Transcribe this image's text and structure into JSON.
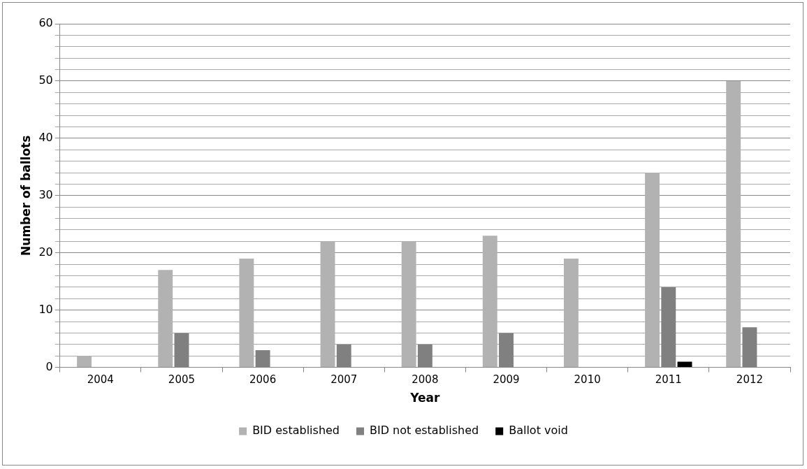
{
  "chart_data": {
    "type": "bar",
    "xlabel": "Year",
    "ylabel": "Number of ballots",
    "categories": [
      "2004",
      "2005",
      "2006",
      "2007",
      "2008",
      "2009",
      "2010",
      "2011",
      "2012"
    ],
    "series": [
      {
        "name": "BID established",
        "color": "#b2b2b2",
        "values": [
          2,
          17,
          19,
          22,
          22,
          23,
          19,
          34,
          50
        ]
      },
      {
        "name": "BID not established",
        "color": "#808080",
        "values": [
          0,
          6,
          3,
          4,
          4,
          6,
          0,
          14,
          7
        ]
      },
      {
        "name": "Ballot void",
        "color": "#000000",
        "values": [
          0,
          0,
          0,
          0,
          0,
          0,
          0,
          1,
          0
        ]
      }
    ],
    "ylim": [
      0,
      60
    ],
    "yticks": [
      0,
      {
        "value": 2,
        "label": null
      },
      {
        "value": 4,
        "label": null
      },
      {
        "value": 6,
        "label": null
      },
      {
        "value": 8,
        "label": null
      },
      10,
      {
        "value": 12,
        "label": null
      },
      {
        "value": 14,
        "label": null
      },
      {
        "value": 16,
        "label": null
      },
      {
        "value": 18,
        "label": null
      },
      20,
      {
        "value": 22,
        "label": null
      },
      {
        "value": 24,
        "label": null
      },
      {
        "value": 26,
        "label": null
      },
      {
        "value": 28,
        "label": null
      },
      30,
      {
        "value": 32,
        "label": null
      },
      {
        "value": 34,
        "label": null
      },
      {
        "value": 36,
        "label": null
      },
      {
        "value": 38,
        "label": null
      },
      40,
      {
        "value": 42,
        "label": null
      },
      {
        "value": 44,
        "label": null
      },
      {
        "value": 46,
        "label": null
      },
      {
        "value": 48,
        "label": null
      },
      50,
      {
        "value": 52,
        "label": null
      },
      {
        "value": 54,
        "label": null
      },
      {
        "value": 56,
        "label": null
      },
      {
        "value": 58,
        "label": null
      },
      60
    ],
    "grid": "y",
    "legend": "bottom"
  }
}
